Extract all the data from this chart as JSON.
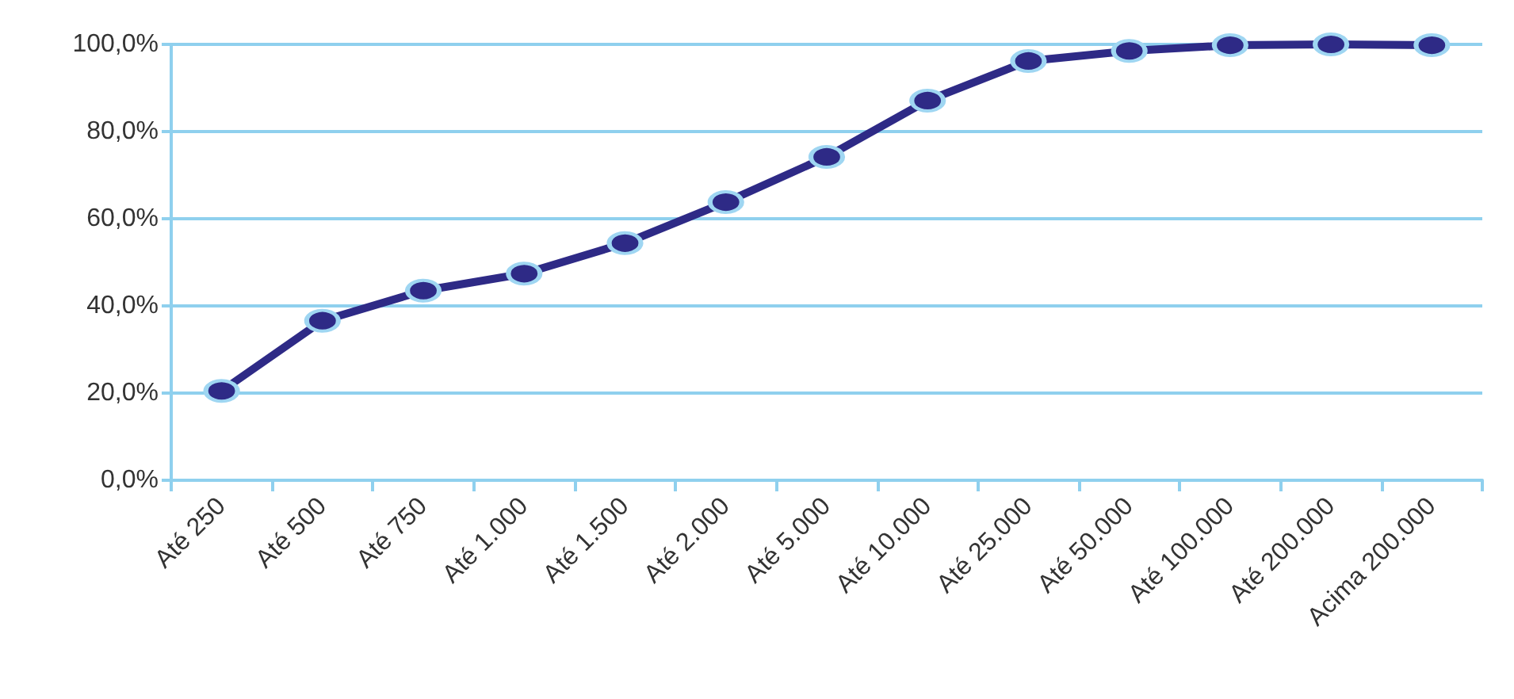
{
  "chart_data": {
    "type": "line",
    "categories": [
      "Até 250",
      "Até 500",
      "Até 750",
      "Até 1.000",
      "Até 1.500",
      "Até 2.000",
      "Até 5.000",
      "Até 10.000",
      "Até 25.000",
      "Até 50.000",
      "Até 100.000",
      "Até 200.000",
      "Acima 200.000"
    ],
    "series": [
      {
        "color": "#2e2a86",
        "values": [
          20.5,
          36.6,
          43.5,
          47.4,
          54.4,
          63.8,
          74.2,
          87.1,
          96.2,
          98.5,
          99.8,
          100,
          99.8
        ]
      }
    ],
    "ylim": [
      0,
      100
    ],
    "yticks": [
      {
        "value": 0,
        "label": "0,0%"
      },
      {
        "value": 20,
        "label": "20,0%"
      },
      {
        "value": 40,
        "label": "40,0%"
      },
      {
        "value": 60,
        "label": "60,0%"
      },
      {
        "value": 80,
        "label": "80,0%"
      },
      {
        "value": 100,
        "label": "100,0%"
      }
    ],
    "grid": "y",
    "marker": "circle",
    "line_style": "solid"
  }
}
